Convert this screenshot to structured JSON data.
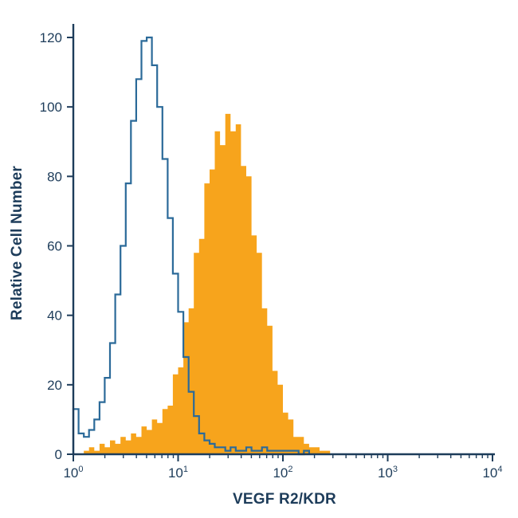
{
  "figure": {
    "background": "#ffffff"
  },
  "colors": {
    "axis": "#1d3c5a",
    "tick_label": "#1d3c5a",
    "control_curve_blue": "#2b6a99",
    "stained_fill_orange": "#f7a41c"
  },
  "chart_data": {
    "type": "area",
    "subtype": "flow-cytometry-histogram-overlay",
    "title": "",
    "xlabel": "VEGF R2/KDR",
    "ylabel": "Relative Cell Number",
    "x_scale": "log10",
    "x_range_log10": [
      0,
      4
    ],
    "ylim": [
      0,
      124
    ],
    "grid": false,
    "legend": "none",
    "y_ticks": [
      0,
      20,
      40,
      60,
      80,
      100,
      120
    ],
    "x_major_ticks": [
      {
        "log10": 0,
        "base": "10",
        "exp": "0"
      },
      {
        "log10": 1,
        "base": "10",
        "exp": "1"
      },
      {
        "log10": 2,
        "base": "10",
        "exp": "2"
      },
      {
        "log10": 3,
        "base": "10",
        "exp": "3"
      },
      {
        "log10": 4,
        "base": "10",
        "exp": "4"
      }
    ],
    "x_minor_ticks_per_decade": [
      2,
      3,
      4,
      5,
      6,
      7,
      8,
      9
    ],
    "bins": {
      "start_log10": 0,
      "step_log10": 0.05
    },
    "series": [
      {
        "name": "stained-filled-histogram",
        "style": "filled",
        "color": "#f7a41c",
        "peak_x": 28,
        "peak_y": 98,
        "values": [
          0,
          0,
          1,
          2,
          1,
          3,
          2,
          4,
          3,
          5,
          4,
          6,
          5,
          8,
          7,
          10,
          9,
          13,
          14,
          23,
          25,
          38,
          42,
          58,
          62,
          78,
          82,
          93,
          89,
          98,
          93,
          95,
          83,
          80,
          63,
          58,
          42,
          37,
          24,
          20,
          12,
          10,
          5,
          5,
          3,
          2,
          2,
          1,
          1,
          0,
          0,
          0,
          0,
          0,
          0,
          0,
          0,
          0,
          0,
          0,
          0,
          0,
          0,
          0,
          0,
          0,
          0,
          0,
          0,
          0,
          0,
          0,
          0,
          0,
          0,
          0,
          0,
          0,
          0,
          0,
          0
        ]
      },
      {
        "name": "control-open-histogram",
        "style": "line",
        "color": "#2b6a99",
        "peak_x": 5,
        "peak_y": 120,
        "values": [
          13,
          6,
          5,
          7,
          10,
          15,
          22,
          32,
          46,
          60,
          78,
          96,
          108,
          119,
          120,
          112,
          100,
          85,
          68,
          52,
          41,
          28,
          18,
          11,
          6,
          4,
          3,
          2,
          2,
          1,
          2,
          1,
          1,
          2,
          1,
          1,
          2,
          1,
          1,
          1,
          1,
          1,
          1,
          0,
          1,
          0,
          0,
          0,
          0,
          0,
          0,
          0,
          0,
          0,
          0,
          0,
          0,
          0,
          0,
          0,
          0,
          0,
          0,
          0,
          0,
          0,
          0,
          0,
          0,
          0,
          0,
          0,
          0,
          0,
          0,
          0,
          0,
          0,
          0,
          0,
          0
        ]
      }
    ]
  }
}
